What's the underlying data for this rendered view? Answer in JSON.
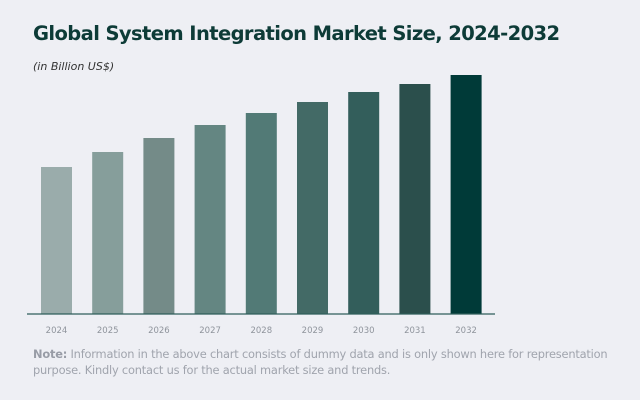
{
  "chart_data": {
    "type": "bar",
    "title": "Global System Integration Market Size, 2024-2032",
    "subtitle": "(in Billion US$)",
    "categories": [
      "2024",
      "2025",
      "2026",
      "2027",
      "2028",
      "2029",
      "2030",
      "2031",
      "2032"
    ],
    "values": [
      147,
      162,
      176,
      189,
      201,
      212,
      222,
      230,
      239
    ],
    "colors": [
      "#9aacab",
      "#869e9b",
      "#748b88",
      "#648682",
      "#527a76",
      "#436a66",
      "#335e5b",
      "#2b4f4c",
      "#003a38"
    ],
    "xlabel": "",
    "ylabel": "",
    "ylim": [
      0,
      239
    ],
    "grid": false,
    "axis_color": "#2f5e5a"
  },
  "note": {
    "label": "Note:",
    "text": " Information in the above chart consists of dummy data and is only shown here for representation purpose. Kindly contact us for the actual market size and trends."
  }
}
